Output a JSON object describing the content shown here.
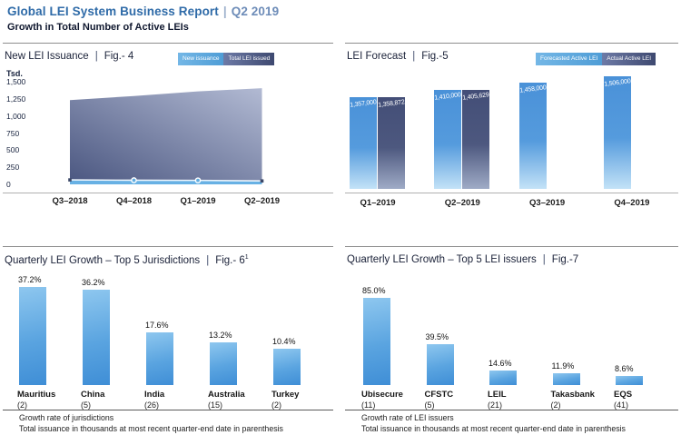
{
  "header": {
    "title": "Global LEI System Business Report",
    "divider": "|",
    "period": "Q2 2019",
    "subtitle": "Growth in Total Number of Active LEIs"
  },
  "panels": {
    "issuance": {
      "title": "New LEI Issuance",
      "divider": "|",
      "fig": "Fig.- 4"
    },
    "forecast": {
      "title": "LEI Forecast",
      "divider": "|",
      "fig": "Fig.-5"
    },
    "jurisdictions": {
      "title": "Quarterly LEI Growth – Top 5 Jurisdictions",
      "divider": "|",
      "fig": "Fig.- 6",
      "fig_sup": "1"
    },
    "issuers": {
      "title": "Quarterly LEI Growth – Top 5 LEI issuers",
      "divider": "|",
      "fig": "Fig.-7"
    }
  },
  "chart_data": [
    {
      "id": "new-lei-issuance",
      "type": "area",
      "title": "New LEI Issuance | Fig.- 4",
      "ylabel": "Tsd.",
      "unit": "thousands",
      "ylim": [
        0,
        1500
      ],
      "yticks": [
        1500,
        1250,
        1000,
        750,
        500,
        250,
        0
      ],
      "ytick_labels": [
        "1,500",
        "1,250",
        "1,000",
        "750",
        "500",
        "250",
        "0"
      ],
      "categories": [
        "Q3–2018",
        "Q4–2018",
        "Q1–2019",
        "Q2–2019"
      ],
      "series": [
        {
          "name": "New issuance",
          "values": [
            65,
            60,
            58,
            50
          ]
        },
        {
          "name": "Total LEI issued",
          "values": [
            1232,
            1291,
            1359,
            1406
          ]
        }
      ],
      "legend_position": "top-right",
      "grid": false
    },
    {
      "id": "lei-forecast",
      "type": "bar",
      "title": "LEI Forecast | Fig.-5",
      "categories": [
        "Q1–2019",
        "Q2–2019",
        "Q3–2019",
        "Q4–2019"
      ],
      "series": [
        {
          "name": "Forecasted Active LEI",
          "values": [
            1357000,
            1410000,
            1458000,
            1506000
          ],
          "labels": [
            "1,357,000",
            "1,410,000",
            "1,458,000",
            "1,506,000"
          ]
        },
        {
          "name": "Actual Active LEI",
          "values": [
            1358872,
            1405629,
            null,
            null
          ],
          "labels": [
            "1,358,872",
            "1,405,629",
            null,
            null
          ]
        }
      ],
      "legend_position": "top-right",
      "grid": false
    },
    {
      "id": "top5-jurisdictions",
      "type": "bar",
      "title": "Quarterly LEI Growth – Top 5 Jurisdictions | Fig.- 6¹",
      "categories": [
        "Mauritius",
        "China",
        "India",
        "Australia",
        "Turkey"
      ],
      "category_sublabels": [
        "(2)",
        "(5)",
        "(26)",
        "(15)",
        "(2)"
      ],
      "values": [
        37.2,
        36.2,
        17.6,
        13.2,
        10.4
      ],
      "value_labels": [
        "37.2%",
        "36.2%",
        "17.6%",
        "13.2%",
        "10.4%"
      ],
      "footnotes": [
        "Growth rate of jurisdictions",
        "Total issuance in thousands at most recent quarter-end date in parenthesis"
      ]
    },
    {
      "id": "top5-lei-issuers",
      "type": "bar",
      "title": "Quarterly LEI Growth – Top 5 LEI issuers | Fig.-7",
      "categories": [
        "Ubisecure",
        "CFSTC",
        "LEIL",
        "Takasbank",
        "EQS"
      ],
      "category_sublabels": [
        "(11)",
        "(5)",
        "(21)",
        "(2)",
        "(41)"
      ],
      "values": [
        85.0,
        39.5,
        14.6,
        11.9,
        8.6
      ],
      "value_labels": [
        "85.0%",
        "39.5%",
        "14.6%",
        "11.9%",
        "8.6%"
      ],
      "footnotes": [
        "Growth rate of LEI issuers",
        "Total issuance in thousands at most recent quarter-end date in parenthesis"
      ]
    }
  ],
  "colors": {
    "header_blue": "#2f6ba8",
    "period_blue": "#6d8cb8",
    "light_series": "#5fa9e0",
    "dark_series": "#4a5680",
    "bar_top": "#8ec7ef",
    "bar_bottom": "#3f8ed6"
  }
}
